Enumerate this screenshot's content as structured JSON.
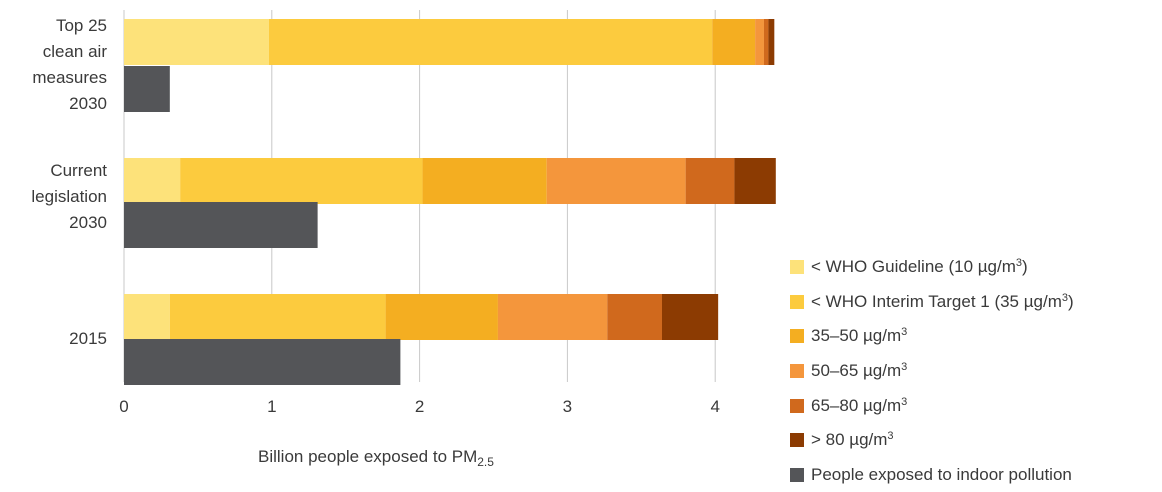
{
  "chart_data": {
    "type": "bar",
    "orientation": "horizontal",
    "stacked": true,
    "xlabel": "Billion people exposed to PM",
    "xlabel_sub": "2.5",
    "xlim": [
      0,
      4.4
    ],
    "xticks": [
      "0",
      "1",
      "2",
      "3",
      "4"
    ],
    "grid": true,
    "legend_position": "right",
    "categories": [
      {
        "label_lines": [
          "Top 25",
          "clean air",
          "measures",
          "2030"
        ]
      },
      {
        "label_lines": [
          "Current",
          "legislation",
          "2030"
        ]
      },
      {
        "label_lines": [
          "2015"
        ]
      }
    ],
    "series": [
      {
        "name": "< WHO Guideline (10 µg/m",
        "sup": "3",
        "suffix": ")",
        "color": "#fde27a",
        "values": [
          0.98,
          0.38,
          0.31
        ]
      },
      {
        "name": "< WHO Interim Target 1 (35 µg/m",
        "sup": "3",
        "suffix": ")",
        "color": "#fccb3e",
        "values": [
          3.0,
          1.64,
          1.46
        ]
      },
      {
        "name": "35–50 µg/m",
        "sup": "3",
        "suffix": "",
        "color": "#f4ae21",
        "values": [
          0.29,
          0.84,
          0.76
        ]
      },
      {
        "name": "50–65 µg/m",
        "sup": "3",
        "suffix": "",
        "color": "#f4963c",
        "values": [
          0.06,
          0.94,
          0.74
        ]
      },
      {
        "name": "65–80 µg/m",
        "sup": "3",
        "suffix": "",
        "color": "#d0691d",
        "values": [
          0.03,
          0.33,
          0.37
        ]
      },
      {
        "name": "> 80 µg/m",
        "sup": "3",
        "suffix": "",
        "color": "#8c3b02",
        "values": [
          0.04,
          0.28,
          0.38
        ]
      }
    ],
    "indoor_series": {
      "name": "People exposed to indoor pollution",
      "color": "#545558",
      "values": [
        0.31,
        1.31,
        1.87
      ]
    }
  }
}
